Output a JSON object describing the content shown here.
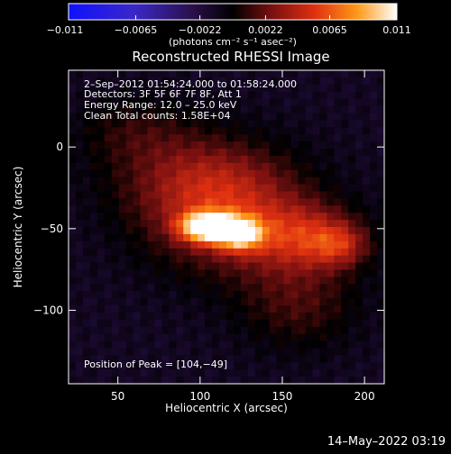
{
  "chart_data": {
    "type": "heatmap",
    "title": "Reconstructed RHESSI Image",
    "xlabel": "Heliocentric X (arcsec)",
    "ylabel": "Heliocentric Y (arcsec)",
    "xlim": [
      20,
      212
    ],
    "ylim": [
      -145,
      47
    ],
    "x_ticks": [
      50,
      100,
      150,
      200
    ],
    "y_ticks": [
      0,
      -50,
      -100
    ],
    "colorbar": {
      "min": -0.011,
      "max": 0.011,
      "ticks": [
        -0.011,
        -0.0065,
        -0.0022,
        0.0022,
        0.0065,
        0.011
      ],
      "tick_labels": [
        "−0.011",
        "−0.0065",
        "−0.0022",
        "0.0022",
        "0.0065",
        "0.011"
      ],
      "unit_label": "(photons cm⁻² s⁻¹ asec⁻²)"
    },
    "annotations": [
      " 2–Sep–2012 01:54:24.000 to 01:58:24.000",
      "Detectors: 3F 5F 6F 7F 8F, Att 1",
      "Energy Range: 12.0 – 25.0 keV",
      "Clean    Total counts: 1.58E+04"
    ],
    "peak_label": "Position of Peak = [104,−49]",
    "peak": [
      104,
      -49
    ],
    "sources": [
      {
        "x": 104,
        "y": -49,
        "sx": 11,
        "sy": 6,
        "amp": 0.0118
      },
      {
        "x": 124,
        "y": -53,
        "sx": 10,
        "sy": 7,
        "amp": 0.0085
      },
      {
        "x": 118,
        "y": -45,
        "sx": 35,
        "sy": 24,
        "amp": 0.0045
      },
      {
        "x": 100,
        "y": -20,
        "sx": 35,
        "sy": 20,
        "amp": 0.0035
      },
      {
        "x": 165,
        "y": -55,
        "sx": 22,
        "sy": 14,
        "amp": 0.0045
      },
      {
        "x": 185,
        "y": -60,
        "sx": 12,
        "sy": 9,
        "amp": 0.0035
      },
      {
        "x": 160,
        "y": -95,
        "sx": 25,
        "sy": 20,
        "amp": 0.0025
      },
      {
        "x": 60,
        "y": 10,
        "sx": 25,
        "sy": 15,
        "amp": 0.0018
      }
    ],
    "background": -0.0012
  },
  "footer": {
    "timestamp": "14–May–2022 03:19"
  }
}
